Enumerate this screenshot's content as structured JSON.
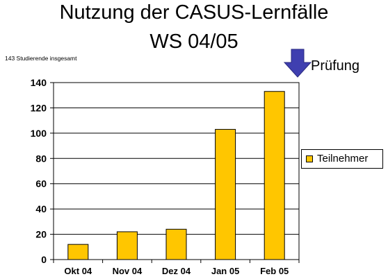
{
  "chart_data": {
    "type": "bar",
    "title": "Nutzung der CASUS-Lernfälle",
    "subtitle": "WS 04/05",
    "note": "143 Studierende insgesamt",
    "annotation": "Prüfung",
    "categories": [
      "Okt 04",
      "Nov 04",
      "Dez 04",
      "Jan 05",
      "Feb 05"
    ],
    "series": [
      {
        "name": "Teilnehmer",
        "values": [
          12,
          22,
          24,
          103,
          133
        ]
      }
    ],
    "ylim": [
      0,
      140
    ],
    "yticks": [
      "0",
      "20",
      "40",
      "60",
      "80",
      "100",
      "120",
      "140"
    ],
    "xlabel": "",
    "ylabel": "",
    "grid": true,
    "legend_position": "right",
    "colors": {
      "bar": "#FFC600",
      "bar_border": "#000000",
      "arrow": "#3F3FB0",
      "grid": "#000000"
    }
  }
}
